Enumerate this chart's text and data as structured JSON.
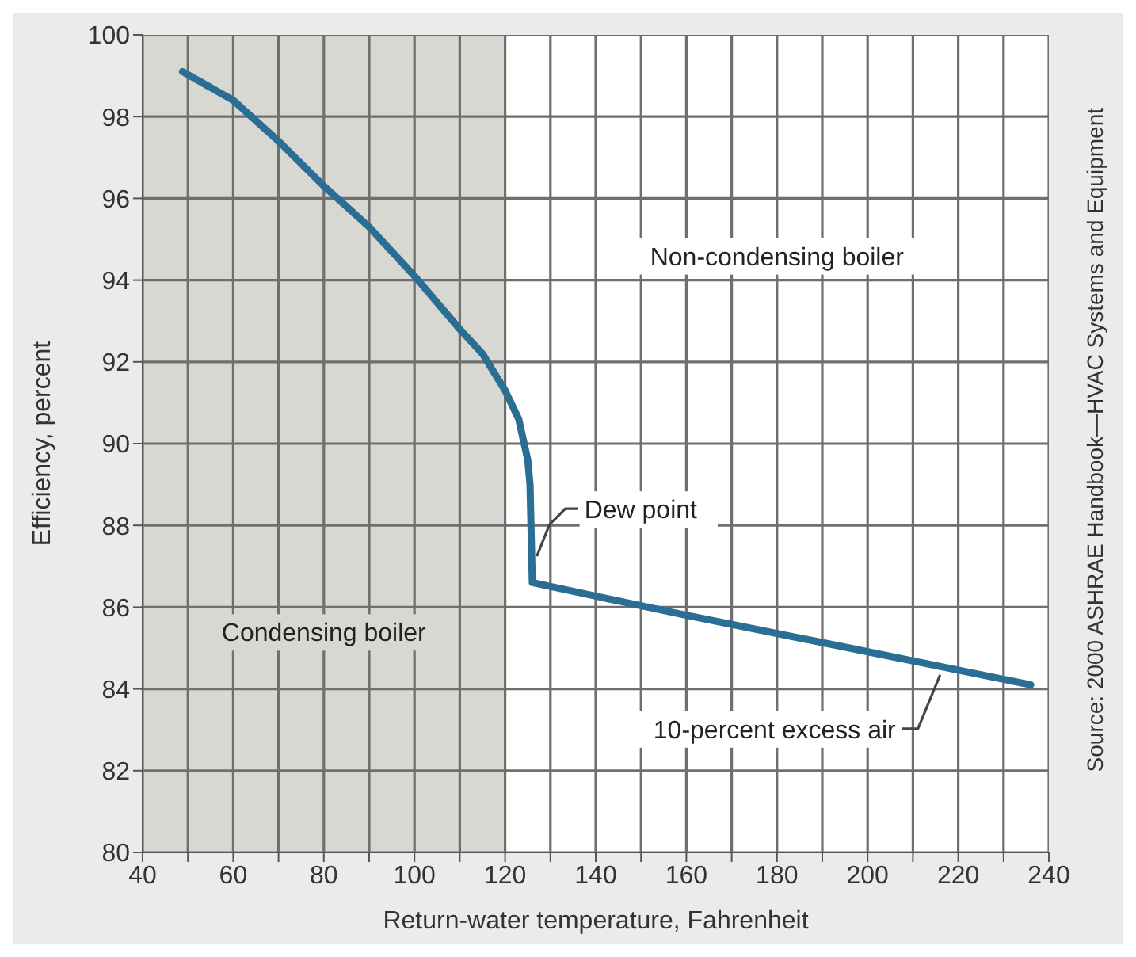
{
  "chart_data": {
    "type": "line",
    "xlabel": "Return-water temperature, Fahrenheit",
    "ylabel": "Efficiency, percent",
    "x": [
      48.8,
      60,
      70,
      80,
      90,
      100,
      110,
      115,
      120,
      123,
      125,
      125.5,
      126,
      160,
      196,
      236
    ],
    "series": [
      {
        "color": "#2a6e93",
        "values": [
          99.1,
          98.4,
          97.4,
          96.3,
          95.3,
          94.1,
          92.8,
          92.2,
          91.3,
          90.6,
          89.6,
          89.0,
          86.6,
          85.8,
          85.0,
          84.1
        ]
      }
    ],
    "xlim": [
      40,
      240
    ],
    "xticks": [
      40,
      {
        "value": 50,
        "label": null
      },
      60,
      {
        "value": 70,
        "label": null
      },
      80,
      {
        "value": 90,
        "label": null
      },
      100,
      {
        "value": 110,
        "label": null
      },
      120,
      {
        "value": 130,
        "label": null
      },
      140,
      {
        "value": 150,
        "label": null
      },
      160,
      {
        "value": 170,
        "label": null
      },
      180,
      {
        "value": 190,
        "label": null
      },
      200,
      {
        "value": 210,
        "label": null
      },
      220,
      {
        "value": 230,
        "label": null
      },
      240
    ],
    "ylim": [
      80,
      100
    ],
    "yticks": [
      80,
      82,
      84,
      86,
      88,
      90,
      92,
      94,
      96,
      98,
      100
    ],
    "grid": true,
    "marker": "none",
    "line_style": "solid",
    "bands": [
      {
        "axis": "x",
        "from": 40,
        "to": 120,
        "label": "Condensing boiler",
        "color": "#d8d8d2"
      },
      {
        "axis": "x",
        "from": 120,
        "to": 240,
        "label": "Non-condensing boiler",
        "color": "#ffffff"
      }
    ],
    "annotations": [
      {
        "text": "Dew point",
        "x": 126.3,
        "y": 87.4
      },
      {
        "text": "10-percent excess air",
        "x": 216,
        "y": 84.5
      },
      "Source: 2000 ASHRAE Handbook—HVAC Systems and Equipment"
    ]
  }
}
